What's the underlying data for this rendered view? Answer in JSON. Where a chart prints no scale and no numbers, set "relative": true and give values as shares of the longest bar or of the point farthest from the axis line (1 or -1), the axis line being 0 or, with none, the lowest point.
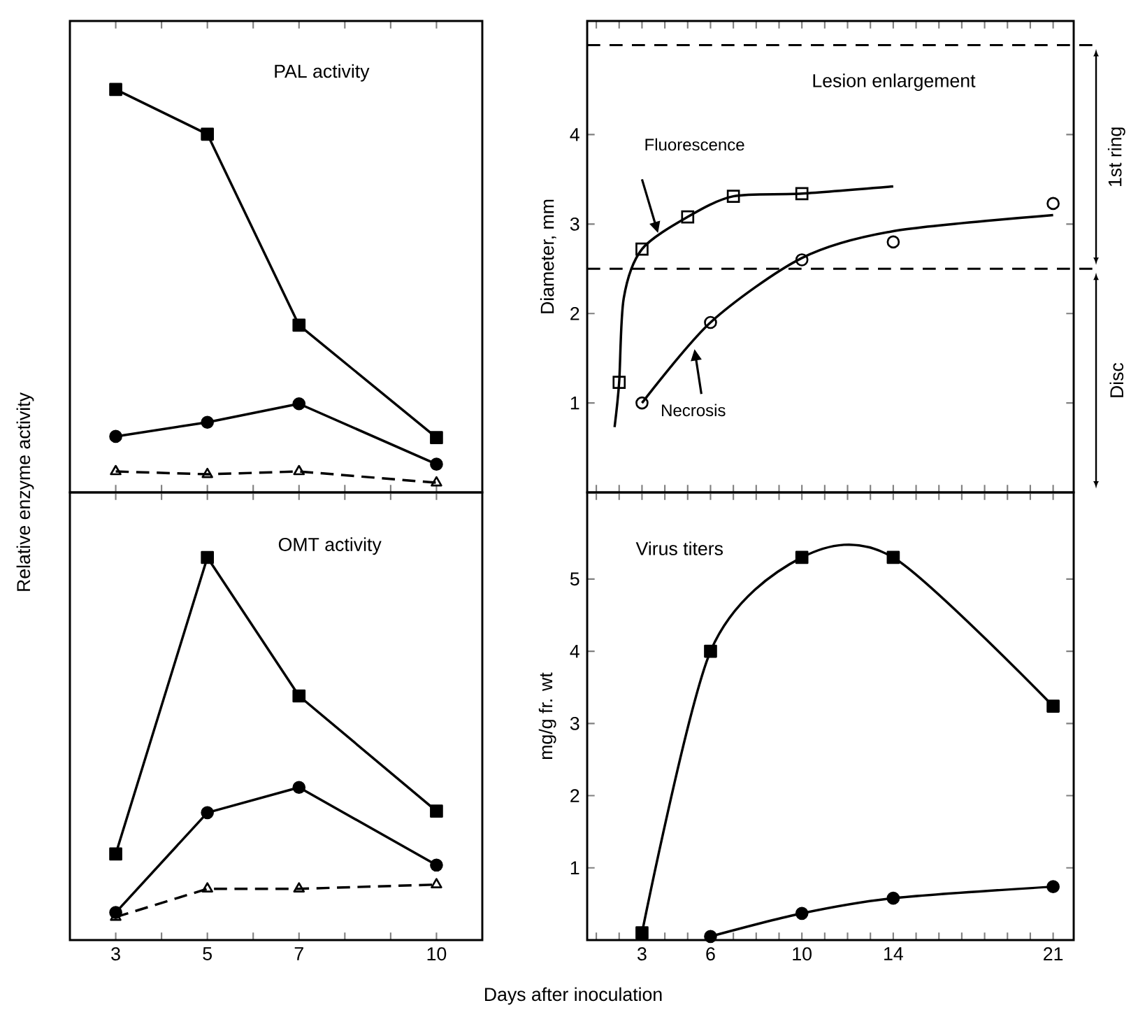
{
  "chart_data": [
    {
      "type": "line",
      "title": "PAL activity",
      "relative": true,
      "x": [
        3,
        5,
        7,
        10
      ],
      "xlim": [
        2,
        11
      ],
      "xticks": [
        {
          "value": 3,
          "label": null
        },
        {
          "value": 4,
          "label": null
        },
        {
          "value": 5,
          "label": null
        },
        {
          "value": 6,
          "label": null
        },
        {
          "value": 7,
          "label": null
        },
        {
          "value": 8,
          "label": null
        },
        {
          "value": 9,
          "label": null
        },
        {
          "value": 10,
          "label": null
        }
      ],
      "tick_labels": false,
      "ylabel": "Relative enzyme activity",
      "series": [
        {
          "color": "#000000",
          "marker": "square",
          "values": [
            1,
            0.889,
            0.415,
            0.136
          ]
        },
        {
          "color": "#000000",
          "marker": "circle",
          "values": [
            0.139,
            0.174,
            0.22,
            0.07
          ]
        },
        {
          "color": "#000000",
          "marker": "triangle",
          "line_style": "dashed",
          "values": [
            0.052,
            0.045,
            0.052,
            0.024
          ]
        }
      ]
    },
    {
      "type": "scatter",
      "title": "Lesion enlargement",
      "ylabel": "Diameter,  mm",
      "xlim": [
        0.6,
        21.9
      ],
      "ylim": [
        0,
        5.27
      ],
      "xticks": [
        {
          "value": 1,
          "label": null
        },
        {
          "value": 2,
          "label": null
        },
        {
          "value": 3,
          "label": null
        },
        {
          "value": 4,
          "label": null
        },
        {
          "value": 5,
          "label": null
        },
        {
          "value": 6,
          "label": null
        },
        {
          "value": 7,
          "label": null
        },
        {
          "value": 8,
          "label": null
        },
        {
          "value": 9,
          "label": null
        },
        {
          "value": 10,
          "label": null
        },
        {
          "value": 11,
          "label": null
        },
        {
          "value": 12,
          "label": null
        },
        {
          "value": 13,
          "label": null
        },
        {
          "value": 14,
          "label": null
        },
        {
          "value": 15,
          "label": null
        },
        {
          "value": 16,
          "label": null
        },
        {
          "value": 17,
          "label": null
        },
        {
          "value": 18,
          "label": null
        },
        {
          "value": 19,
          "label": null
        },
        {
          "value": 20,
          "label": null
        },
        {
          "value": 21,
          "label": null
        }
      ],
      "yticks": [
        1,
        2,
        3,
        4
      ],
      "tick_labels": "y",
      "ref_lines": [
        {
          "axis": "y",
          "value": 2.5,
          "line_style": "dashed"
        },
        {
          "axis": "y",
          "value": 5.0,
          "line_style": "dashed"
        }
      ],
      "annotations": [
        "1st ring",
        "Disc"
      ],
      "series": [
        {
          "type": "line",
          "color": "#000000",
          "x": [
            1.8,
            2,
            2.2,
            3,
            5,
            7,
            10,
            14
          ],
          "values": [
            0.73,
            1.23,
            2.17,
            2.72,
            3.08,
            3.31,
            3.34,
            3.42
          ]
        },
        {
          "type": "line",
          "color": "#000000",
          "x": [
            3,
            6,
            10,
            14,
            21
          ],
          "values": [
            1.0,
            1.9,
            2.62,
            2.92,
            3.1
          ]
        },
        {
          "name": "Fluorescence",
          "color": "#000000",
          "marker": "square",
          "x": [
            2,
            3,
            5,
            7,
            10
          ],
          "values": [
            1.23,
            2.72,
            3.08,
            3.31,
            3.34
          ]
        },
        {
          "name": "Necrosis",
          "color": "#000000",
          "marker": "circle",
          "x": [
            3,
            6,
            10,
            14,
            21
          ],
          "values": [
            1.0,
            1.9,
            2.6,
            2.8,
            3.23
          ]
        }
      ]
    },
    {
      "type": "line",
      "title": "OMT activity",
      "relative": true,
      "x": [
        3,
        5,
        7,
        10
      ],
      "xlim": [
        2,
        11
      ],
      "xticks": [
        3,
        {
          "value": 4,
          "label": null
        },
        5,
        {
          "value": 6,
          "label": null
        },
        7,
        {
          "value": 8,
          "label": null
        },
        {
          "value": 9,
          "label": null
        },
        10
      ],
      "tick_labels": "x",
      "xlabel": "Days after inoculation",
      "series": [
        {
          "color": "#000000",
          "marker": "square",
          "values": [
            0.225,
            1,
            0.638,
            0.337
          ]
        },
        {
          "color": "#000000",
          "marker": "circle",
          "values": [
            0.072,
            0.333,
            0.399,
            0.196
          ]
        },
        {
          "color": "#000000",
          "marker": "triangle",
          "line_style": "dashed",
          "values": [
            0.06,
            0.134,
            0.134,
            0.145
          ]
        }
      ]
    },
    {
      "type": "line",
      "title": "Virus titers",
      "ylabel": "mg/g fr. wt",
      "xlim": [
        0.6,
        21.9
      ],
      "ylim": [
        0,
        6.2
      ],
      "xticks": [
        {
          "value": 1,
          "label": null
        },
        {
          "value": 2,
          "label": null
        },
        3,
        {
          "value": 4,
          "label": null
        },
        {
          "value": 5,
          "label": null
        },
        6,
        {
          "value": 7,
          "label": null
        },
        {
          "value": 8,
          "label": null
        },
        {
          "value": 9,
          "label": null
        },
        10,
        {
          "value": 11,
          "label": null
        },
        {
          "value": 12,
          "label": null
        },
        {
          "value": 13,
          "label": null
        },
        14,
        {
          "value": 15,
          "label": null
        },
        {
          "value": 16,
          "label": null
        },
        {
          "value": 17,
          "label": null
        },
        {
          "value": 18,
          "label": null
        },
        {
          "value": 19,
          "label": null
        },
        {
          "value": 20,
          "label": null
        },
        21
      ],
      "yticks": [
        1,
        2,
        3,
        4,
        5
      ],
      "series": [
        {
          "color": "#000000",
          "marker": "square",
          "x": [
            3,
            6,
            10,
            14,
            21
          ],
          "values": [
            0.1,
            4.0,
            5.3,
            5.3,
            3.24
          ]
        },
        {
          "color": "#000000",
          "marker": "circle",
          "x": [
            6,
            10,
            14,
            21
          ],
          "values": [
            0.05,
            0.37,
            0.58,
            0.74
          ]
        }
      ]
    }
  ]
}
